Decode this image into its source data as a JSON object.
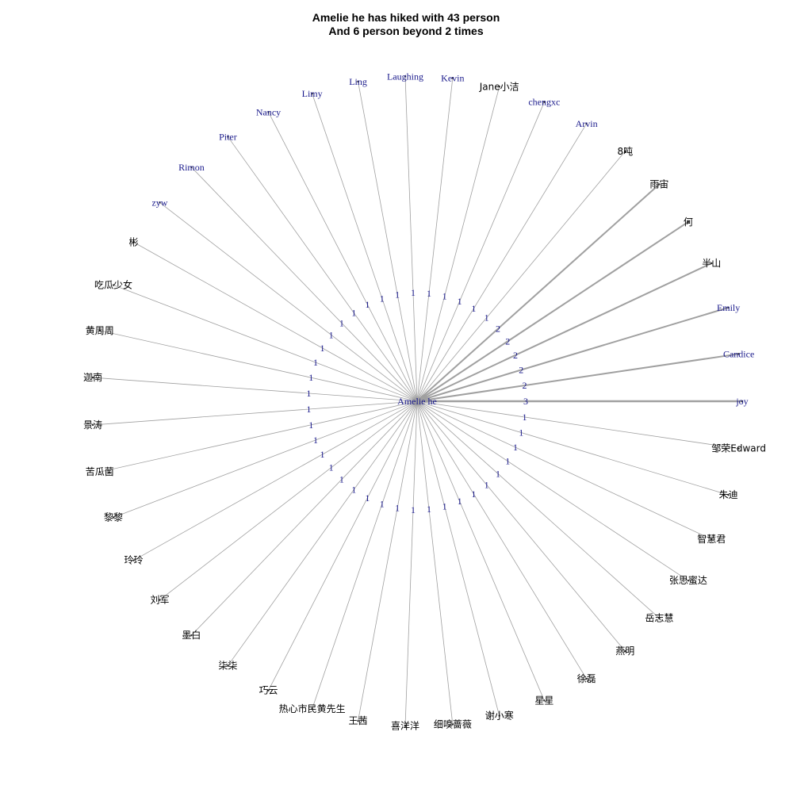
{
  "title": {
    "line1": "Amelie he has hiked with 43 person",
    "line2": "And 6 person beyond 2 times"
  },
  "colors": {
    "edge": "#a0a0a0",
    "latin_label": "#1a1a8c",
    "cjk_label": "#000000"
  },
  "center": {
    "label": "Amelie he"
  },
  "nodes": [
    {
      "label": "joy",
      "weight": 3
    },
    {
      "label": "邹荣Edward",
      "weight": 1
    },
    {
      "label": "朱迪",
      "weight": 1
    },
    {
      "label": "智慧君",
      "weight": 1
    },
    {
      "label": "张思蜜达",
      "weight": 1
    },
    {
      "label": "岳志慧",
      "weight": 1
    },
    {
      "label": "燕明",
      "weight": 1
    },
    {
      "label": "徐磊",
      "weight": 1
    },
    {
      "label": "星星",
      "weight": 1
    },
    {
      "label": "谢小寒",
      "weight": 1
    },
    {
      "label": "细嗅蔷薇",
      "weight": 1
    },
    {
      "label": "喜洋洋",
      "weight": 1
    },
    {
      "label": "王茜",
      "weight": 1
    },
    {
      "label": "热心市民黄先生",
      "weight": 1
    },
    {
      "label": "巧云",
      "weight": 1
    },
    {
      "label": "柒柒",
      "weight": 1
    },
    {
      "label": "墨白",
      "weight": 1
    },
    {
      "label": "刘军",
      "weight": 1
    },
    {
      "label": "玲玲",
      "weight": 1
    },
    {
      "label": "黎黎",
      "weight": 1
    },
    {
      "label": "苦瓜菌",
      "weight": 1
    },
    {
      "label": "景涛",
      "weight": 1
    },
    {
      "label": "迦南",
      "weight": 1
    },
    {
      "label": "黄周周",
      "weight": 1
    },
    {
      "label": "吃瓜少女",
      "weight": 1
    },
    {
      "label": "彬",
      "weight": 1
    },
    {
      "label": "zyw",
      "weight": 1
    },
    {
      "label": "Rimon",
      "weight": 1
    },
    {
      "label": "Piter",
      "weight": 1
    },
    {
      "label": "Nancy",
      "weight": 1
    },
    {
      "label": "Limy",
      "weight": 1
    },
    {
      "label": "Ling",
      "weight": 1
    },
    {
      "label": "Laughing",
      "weight": 1
    },
    {
      "label": "Kevin",
      "weight": 1
    },
    {
      "label": "Jane小洁",
      "weight": 1
    },
    {
      "label": "chengxc",
      "weight": 1
    },
    {
      "label": "Arvin",
      "weight": 1
    },
    {
      "label": "8吨",
      "weight": 1
    },
    {
      "label": "雨宙",
      "weight": 2
    },
    {
      "label": "何",
      "weight": 2
    },
    {
      "label": "半山",
      "weight": 2
    },
    {
      "label": "Emily",
      "weight": 2
    },
    {
      "label": "Candice",
      "weight": 2
    }
  ]
}
